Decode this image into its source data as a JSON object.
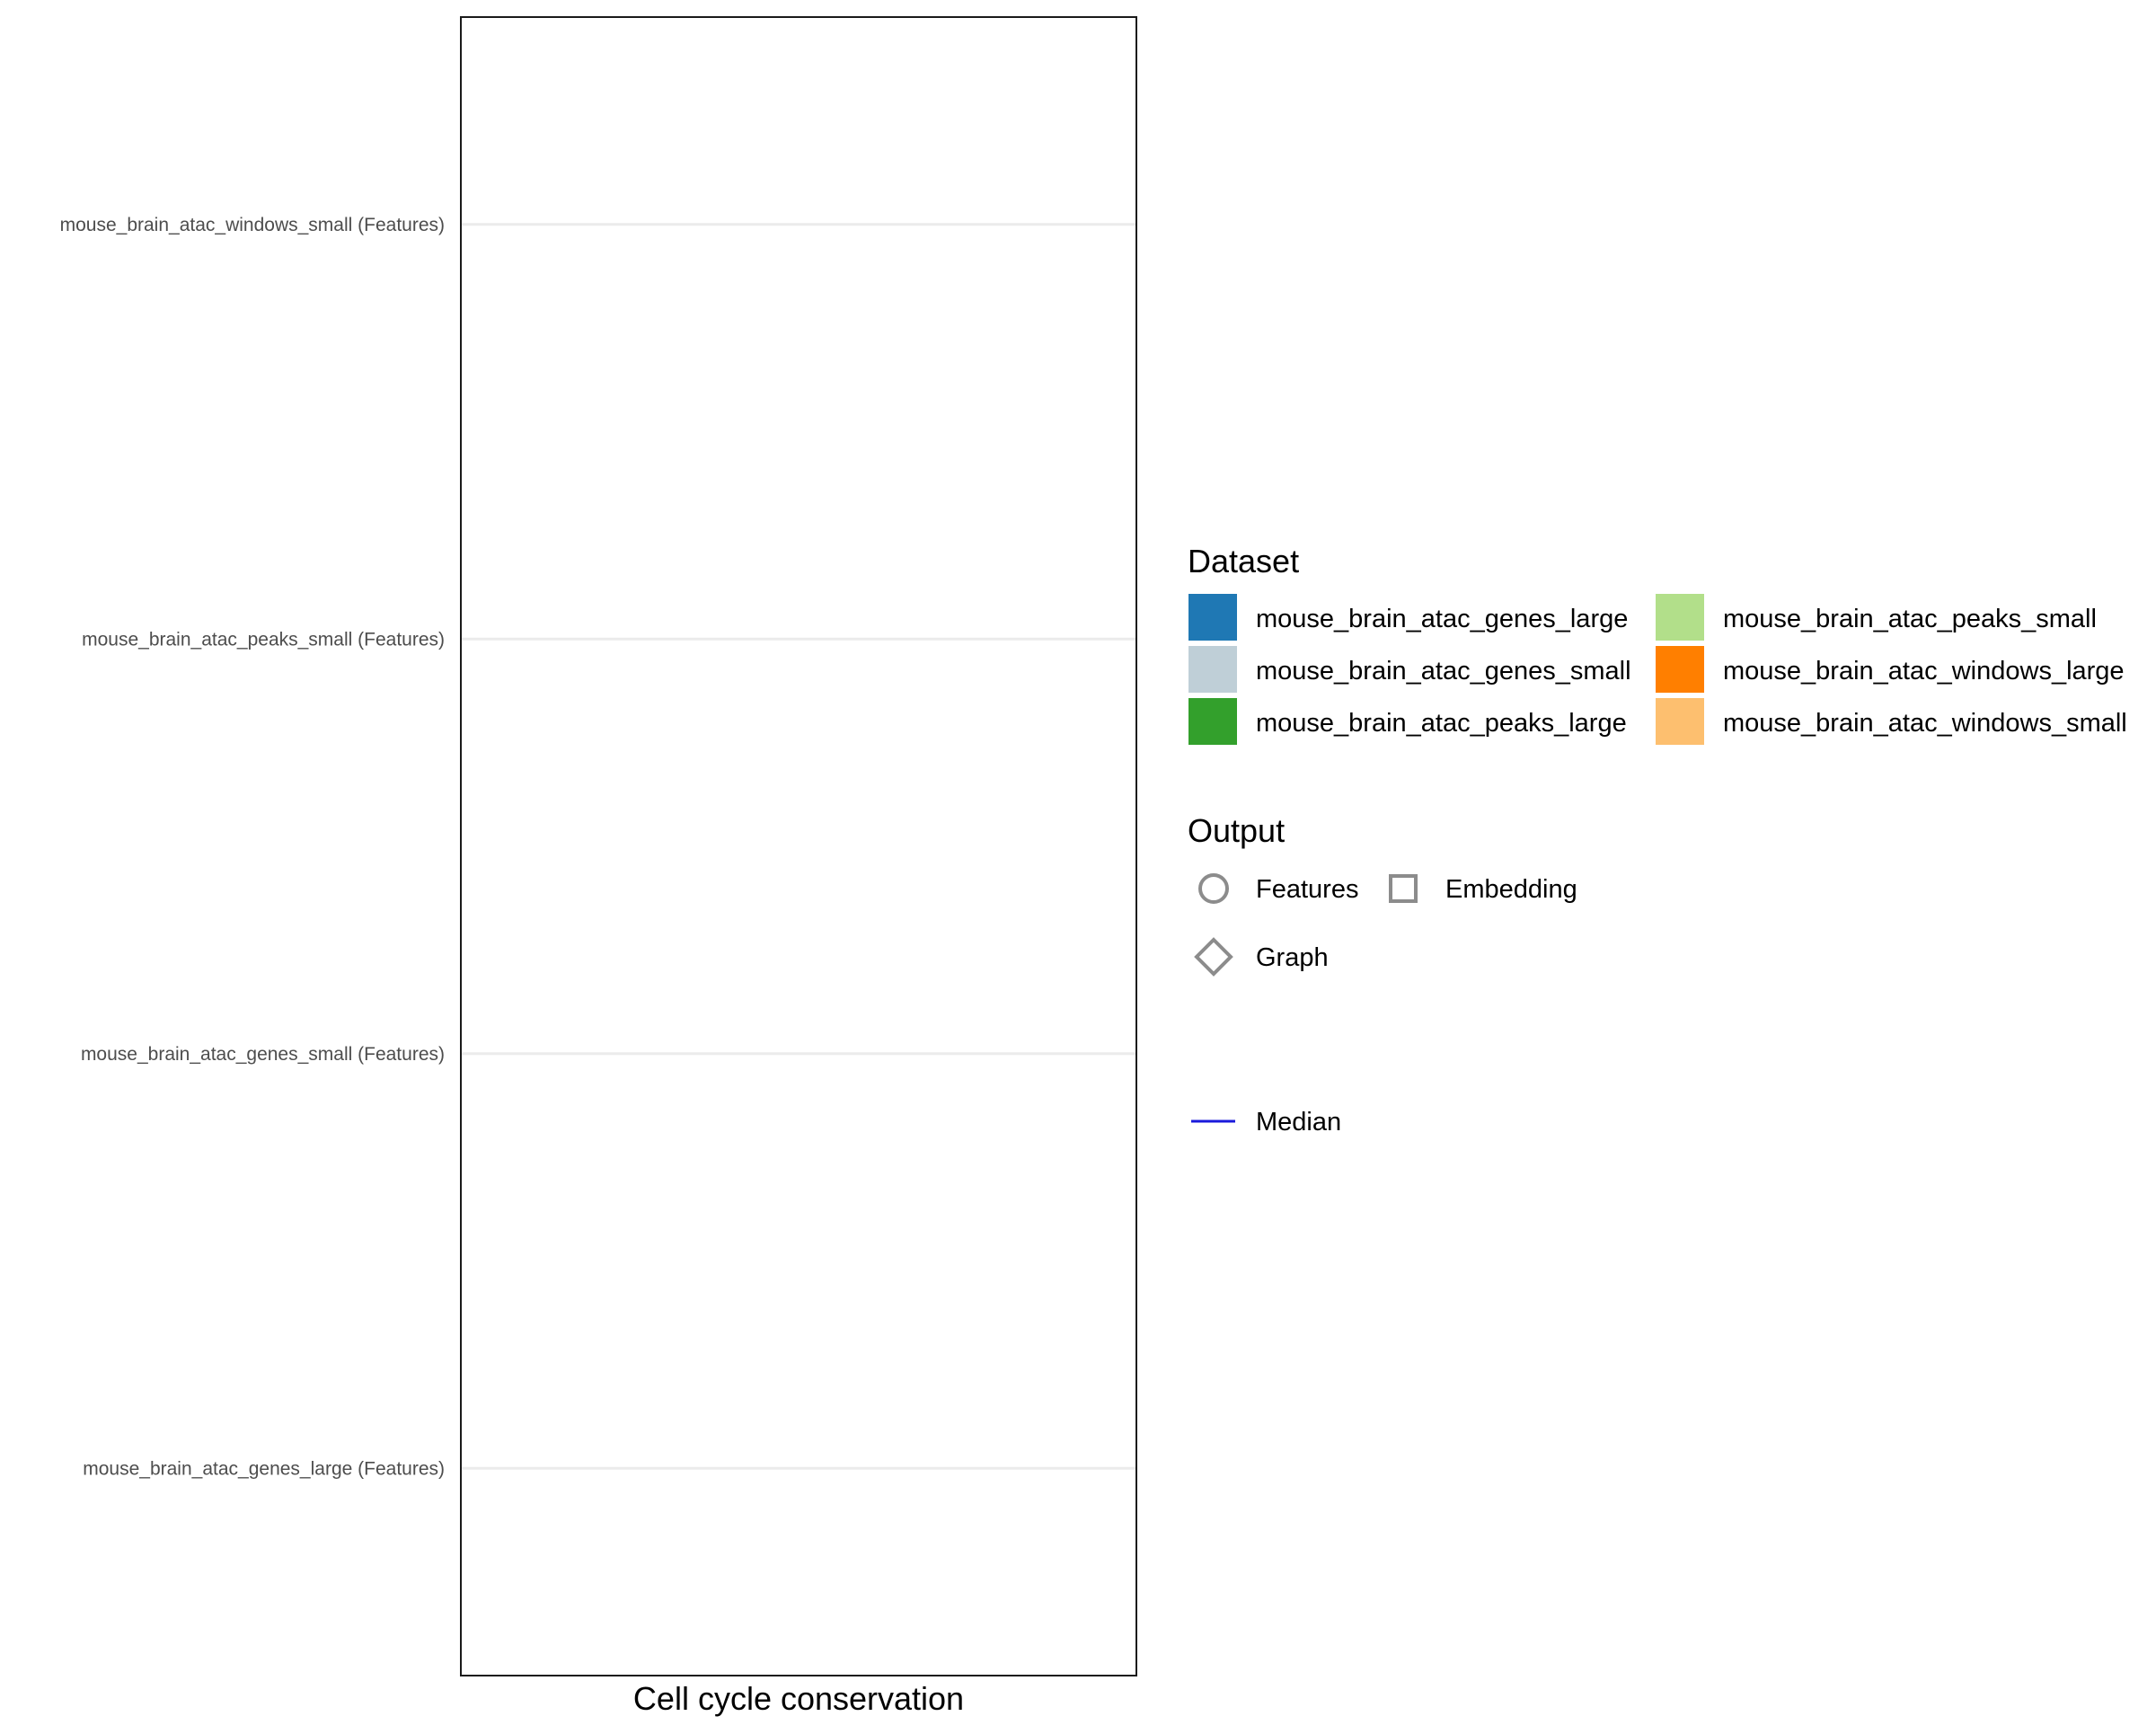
{
  "chart_data": {
    "type": "scatter",
    "orientation": "horizontal",
    "title": "",
    "xlabel": "Cell cycle conservation",
    "ylabel": "",
    "categories": [
      "mouse_brain_atac_genes_large (Features)",
      "mouse_brain_atac_genes_small (Features)",
      "mouse_brain_atac_peaks_small (Features)",
      "mouse_brain_atac_windows_small (Features)"
    ],
    "series": [],
    "grid": true,
    "legend_position": "right",
    "legends": {
      "dataset": {
        "title": "Dataset",
        "items": [
          {
            "label": "mouse_brain_atac_genes_large",
            "color": "#1f78b4"
          },
          {
            "label": "mouse_brain_atac_genes_small",
            "color": "#bfcfd7"
          },
          {
            "label": "mouse_brain_atac_peaks_large",
            "color": "#33a02c"
          },
          {
            "label": "mouse_brain_atac_peaks_small",
            "color": "#b2df8a"
          },
          {
            "label": "mouse_brain_atac_windows_large",
            "color": "#ff7f00"
          },
          {
            "label": "mouse_brain_atac_windows_small",
            "color": "#fdbf6f"
          }
        ]
      },
      "output": {
        "title": "Output",
        "items": [
          {
            "label": "Features",
            "shape": "circle"
          },
          {
            "label": "Embedding",
            "shape": "square"
          },
          {
            "label": "Graph",
            "shape": "diamond"
          }
        ]
      },
      "median": {
        "label": "Median",
        "color": "#1a1adb"
      }
    }
  }
}
